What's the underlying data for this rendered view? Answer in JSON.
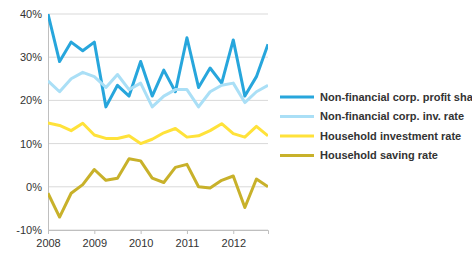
{
  "chart_data": {
    "type": "line",
    "categories": [
      "2008",
      null,
      null,
      null,
      "2009",
      null,
      null,
      null,
      "2010",
      null,
      null,
      null,
      "2011",
      null,
      null,
      null,
      "2012",
      null,
      null,
      null
    ],
    "series": [
      {
        "name": "Non-financial corp. profit share",
        "color": "#27a6dc",
        "values": [
          40,
          29,
          33.5,
          31.5,
          33.5,
          18.5,
          23.5,
          21,
          29,
          21,
          27,
          22,
          34.5,
          23,
          27.5,
          24,
          34,
          21,
          25.5,
          33
        ]
      },
      {
        "name": "Non-financial corp. inv. rate",
        "color": "#aadff6",
        "values": [
          24.5,
          22,
          25,
          26.5,
          25.5,
          23,
          26,
          22.5,
          24,
          18.5,
          21,
          22.5,
          22.5,
          18.5,
          22,
          23.5,
          24,
          19.5,
          22,
          23.5
        ]
      },
      {
        "name": "Household investment rate",
        "color": "#ffe23a",
        "values": [
          14.8,
          14.2,
          13,
          14.7,
          12,
          11.2,
          11.2,
          11.8,
          10,
          11,
          12.5,
          13.5,
          11.5,
          11.8,
          13,
          14.6,
          12.3,
          11.5,
          14,
          11.8
        ]
      },
      {
        "name": "Household saving rate",
        "color": "#c8b12a",
        "values": [
          -1.5,
          -7,
          -1.5,
          0.5,
          4,
          1.5,
          2,
          6.5,
          6,
          2,
          1,
          4.5,
          5.2,
          0,
          -0.3,
          1.5,
          2.5,
          -4.8,
          1.8,
          0
        ]
      }
    ],
    "ylim": [
      -10,
      40
    ],
    "yticks": [
      {
        "value": -10,
        "label": "-10%"
      },
      {
        "value": 0,
        "label": "0%"
      },
      {
        "value": 10,
        "label": "10%"
      },
      {
        "value": 20,
        "label": "20%"
      },
      {
        "value": 30,
        "label": "30%"
      },
      {
        "value": 40,
        "label": "40%"
      }
    ],
    "grid": true,
    "legend": "right"
  }
}
